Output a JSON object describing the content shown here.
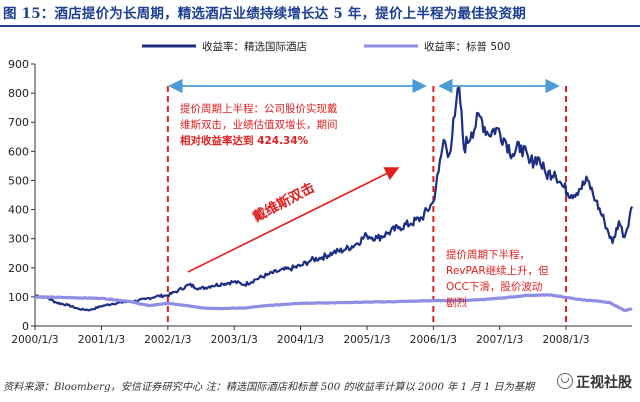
{
  "title": "图 15：酒店提价为长周期，精选酒店业绩持续增长达 5 年，提价上半程为最佳投资期",
  "source": "资料来源：Bloomberg，安信证券研究中心  注：精选国际酒店和标普 500 的收益率计算以 2000 年 1 月 1 日为基期",
  "brand": "正视社股",
  "colors": {
    "choice": "#1c2f82",
    "sp500": "#8f8ee6",
    "annotation": "#e02020",
    "arrow": "#4d9bd6"
  },
  "chart_data": {
    "type": "line",
    "xlim": [
      "2000/1/3",
      "2008/12/31"
    ],
    "ylim": [
      0,
      900
    ],
    "yticks": [
      0,
      100,
      200,
      300,
      400,
      500,
      600,
      700,
      800,
      900
    ],
    "xticks": [
      "2000/1/3",
      "2001/1/3",
      "2002/1/3",
      "2003/1/3",
      "2004/1/3",
      "2005/1/3",
      "2006/1/3",
      "2007/1/3",
      "2008/1/3"
    ],
    "series": [
      {
        "name": "收益率：精选国际酒店",
        "points": [
          [
            "2000/1/3",
            105
          ],
          [
            "2000/3/1",
            100
          ],
          [
            "2000/5/1",
            80
          ],
          [
            "2000/7/1",
            72
          ],
          [
            "2000/9/1",
            58
          ],
          [
            "2000/11/1",
            55
          ],
          [
            "2001/1/1",
            68
          ],
          [
            "2001/3/1",
            76
          ],
          [
            "2001/5/1",
            82
          ],
          [
            "2001/7/1",
            85
          ],
          [
            "2001/9/1",
            92
          ],
          [
            "2001/11/1",
            102
          ],
          [
            "2002/1/1",
            105
          ],
          [
            "2002/3/1",
            122
          ],
          [
            "2002/5/1",
            142
          ],
          [
            "2002/7/1",
            128
          ],
          [
            "2002/9/1",
            138
          ],
          [
            "2002/11/1",
            145
          ],
          [
            "2003/1/1",
            152
          ],
          [
            "2003/3/1",
            142
          ],
          [
            "2003/5/1",
            160
          ],
          [
            "2003/7/1",
            175
          ],
          [
            "2003/9/1",
            188
          ],
          [
            "2003/11/1",
            196
          ],
          [
            "2004/1/1",
            206
          ],
          [
            "2004/3/1",
            226
          ],
          [
            "2004/5/1",
            236
          ],
          [
            "2004/7/1",
            252
          ],
          [
            "2004/9/1",
            262
          ],
          [
            "2004/11/1",
            280
          ],
          [
            "2005/1/1",
            312
          ],
          [
            "2005/3/1",
            302
          ],
          [
            "2005/5/1",
            320
          ],
          [
            "2005/7/1",
            340
          ],
          [
            "2005/9/1",
            352
          ],
          [
            "2005/11/1",
            372
          ],
          [
            "2006/1/1",
            424
          ],
          [
            "2006/2/1",
            530
          ],
          [
            "2006/3/1",
            640
          ],
          [
            "2006/4/1",
            590
          ],
          [
            "2006/5/1",
            720
          ],
          [
            "2006/5/25",
            820
          ],
          [
            "2006/6/20",
            610
          ],
          [
            "2006/8/1",
            665
          ],
          [
            "2006/9/15",
            720
          ],
          [
            "2006/11/1",
            660
          ],
          [
            "2006/12/15",
            680
          ],
          [
            "2007/2/1",
            640
          ],
          [
            "2007/3/15",
            590
          ],
          [
            "2007/5/1",
            620
          ],
          [
            "2007/6/15",
            560
          ],
          [
            "2007/8/1",
            580
          ],
          [
            "2007/9/15",
            520
          ],
          [
            "2007/11/1",
            530
          ],
          [
            "2007/12/15",
            480
          ],
          [
            "2008/2/1",
            450
          ],
          [
            "2008/3/15",
            470
          ],
          [
            "2008/5/1",
            500
          ],
          [
            "2008/6/15",
            430
          ],
          [
            "2008/8/1",
            360
          ],
          [
            "2008/9/15",
            285
          ],
          [
            "2008/10/20",
            360
          ],
          [
            "2008/11/20",
            305
          ],
          [
            "2008/12/31",
            410
          ]
        ]
      },
      {
        "name": "收益率：标普 500",
        "points": [
          [
            "2000/1/3",
            100
          ],
          [
            "2000/6/1",
            98
          ],
          [
            "2001/1/1",
            95
          ],
          [
            "2001/6/1",
            85
          ],
          [
            "2001/9/20",
            70
          ],
          [
            "2002/1/1",
            78
          ],
          [
            "2002/7/20",
            62
          ],
          [
            "2002/10/10",
            60
          ],
          [
            "2003/3/1",
            62
          ],
          [
            "2003/7/1",
            70
          ],
          [
            "2004/1/1",
            78
          ],
          [
            "2004/7/1",
            80
          ],
          [
            "2005/1/1",
            82
          ],
          [
            "2005/7/1",
            84
          ],
          [
            "2006/1/1",
            87
          ],
          [
            "2006/7/1",
            88
          ],
          [
            "2007/1/1",
            95
          ],
          [
            "2007/6/1",
            105
          ],
          [
            "2007/10/10",
            107
          ],
          [
            "2008/1/1",
            98
          ],
          [
            "2008/4/1",
            90
          ],
          [
            "2008/7/1",
            85
          ],
          [
            "2008/9/1",
            80
          ],
          [
            "2008/11/20",
            53
          ],
          [
            "2008/12/31",
            60
          ]
        ]
      }
    ],
    "period_markers": [
      "2002/1/3",
      "2006/1/3",
      "2008/1/3"
    ],
    "annotations": {
      "upper_text": [
        "提价周期上半程：公司股价实现戴",
        "维斯双击，业绩估值双增长，期间",
        "相对收益率达到 424.34%"
      ],
      "lower_text": [
        "提价周期下半程，",
        "RevPAR继续上升，但",
        "OCC下滑，股价波动",
        "剧烈"
      ],
      "davis_label": "戴维斯双击"
    }
  }
}
